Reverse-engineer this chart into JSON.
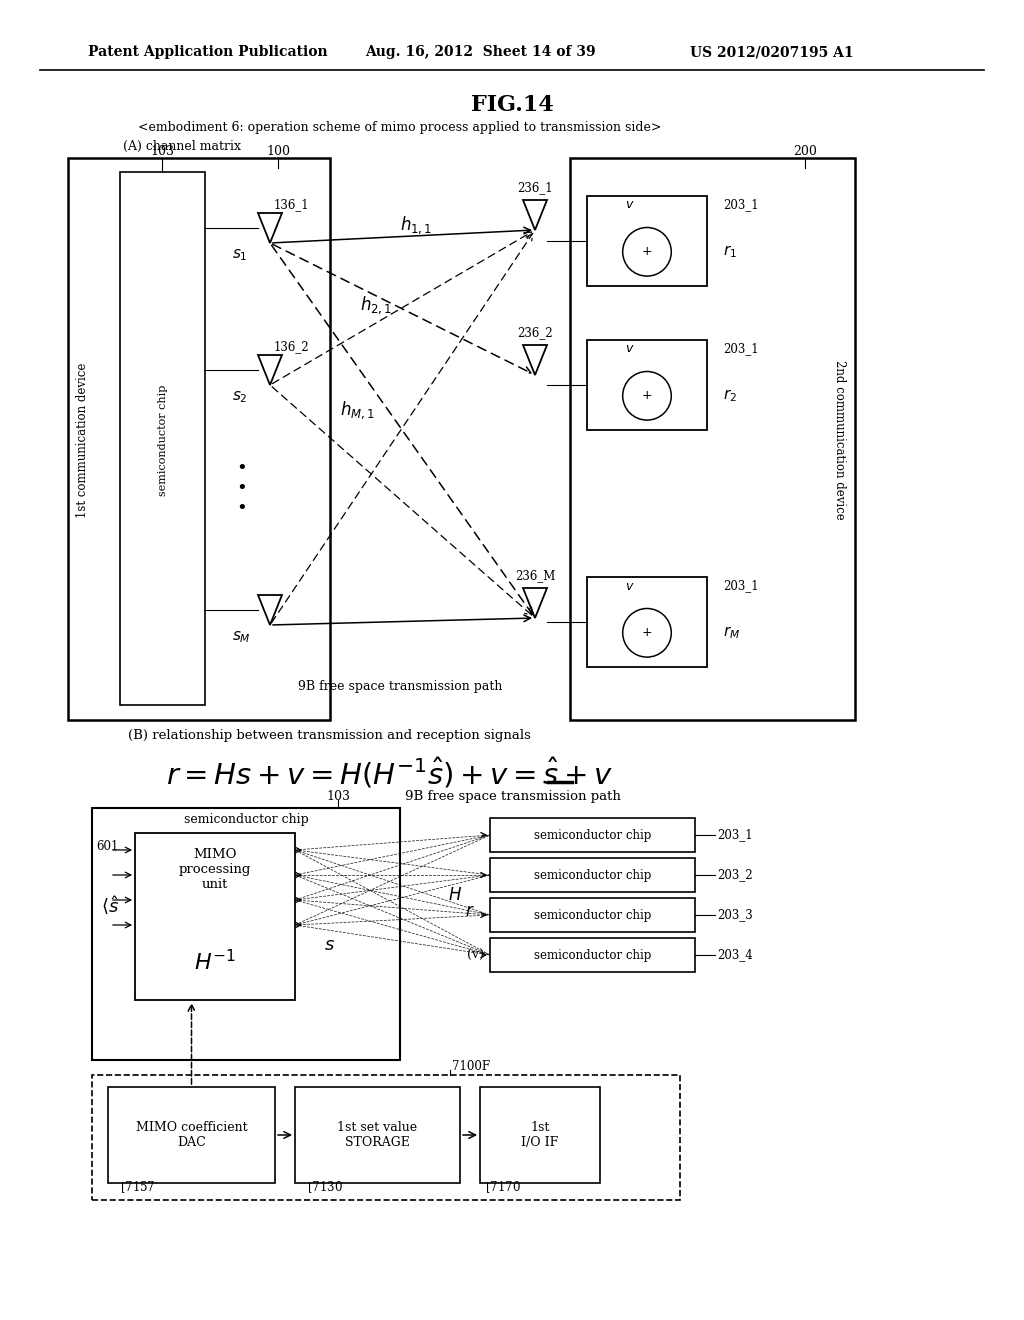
{
  "header_left": "Patent Application Publication",
  "header_mid": "Aug. 16, 2012  Sheet 14 of 39",
  "header_right": "US 2012/0207195 A1",
  "fig_title": "FIG.14",
  "subtitle_A": "<embodiment 6: operation scheme of mimo process applied to transmission side>",
  "subtitle_A2": "(A) channel matrix",
  "subtitle_B": "(B) relationship between transmission and reception signals",
  "label_100": "100",
  "label_200": "200",
  "label_103a": "103",
  "label_136_1": "136_1",
  "label_136_2": "136_2",
  "label_236_1": "236_1",
  "label_236_2": "236_2",
  "label_236_M": "236_M",
  "label_203_1a": "203_1",
  "label_203_1b": "203_1",
  "label_203_1c": "203_1",
  "label_s1": "s",
  "label_s2": "s",
  "label_sM": "s",
  "label_r1": "r",
  "label_r2": "r",
  "label_rM": "r",
  "label_9B_top": "9B free space transmission path",
  "label_103_bot": "103",
  "label_9B_bot": "9B free space transmission path",
  "label_601": "601",
  "label_1st_comm": "1st communication\ndevice",
  "label_2nd_comm": "2nd communication\ndevice",
  "label_semi_chip": "semiconductor chip",
  "label_7100F": "7100F",
  "label_MIMO_DAC": "MIMO coefficient\nDAC",
  "label_7157": "7157",
  "label_STORAGE": "1st set value\nSTORAGE",
  "label_7130": "7130",
  "label_IO_IF": "1st\nI/O IF",
  "label_7170": "7170",
  "label_semi_chip1": "semiconductor chip",
  "label_semi_chip2": "semiconductor chip",
  "label_semi_chip3": "semiconductor chip",
  "label_semi_chip4": "semiconductor chip",
  "label_203_1": "203_1",
  "label_203_2": "203_2",
  "label_203_3": "203_3",
  "label_203_4": "203_4"
}
